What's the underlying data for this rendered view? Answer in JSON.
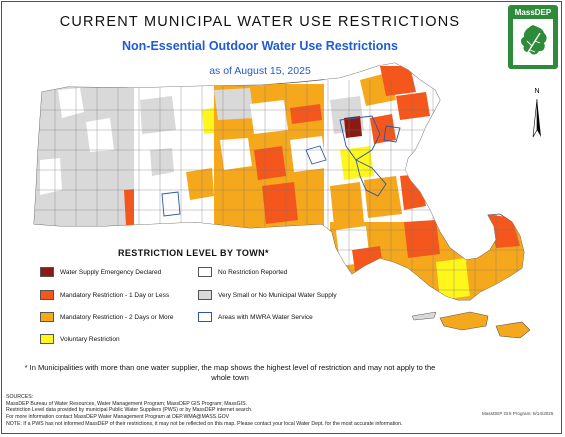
{
  "header": {
    "title": "CURRENT MUNICIPAL WATER USE RESTRICTIONS",
    "subtitle": "Non-Essential Outdoor Water Use Restrictions",
    "date": "as of August 15, 2025"
  },
  "logo": {
    "text": "MassDEP",
    "icon": "oak-leaf-icon",
    "color": "#2e8b3a"
  },
  "north_arrow": {
    "label": "N"
  },
  "legend": {
    "title": "RESTRICTION LEVEL BY TOWN*",
    "items": [
      {
        "label": "Water Supply Emergency Declared",
        "color": "#8b1a10"
      },
      {
        "label": "Mandatory Restriction - 1 Day or Less",
        "color": "#f4561c"
      },
      {
        "label": "Mandatory Restriction - 2 Days or More",
        "color": "#f6a81d"
      },
      {
        "label": "Voluntary Restriction",
        "color": "#fff71c"
      },
      {
        "label": "No Restriction Reported",
        "color": "#ffffff"
      },
      {
        "label": "Very Small or No Municipal Water Supply",
        "color": "#d9d9d9"
      },
      {
        "label": "Areas with MWRA Water Service",
        "color": "#2a55a8"
      }
    ]
  },
  "note": "* In Municipalities with more than one water supplier, the map shows the highest level of restriction and may not apply to the whole town",
  "sources": [
    "SOURCES:",
    "MassDEP Bureau of Water Resources, Water Management Program; MassDEP GIS Program; MassGIS.",
    "Restriction Level data provided by municipal Public Water Suppliers (PWS) or by MassDEP internet search.",
    "For more information contact MassDEP Water Management Program at DEP.WMA@MASS.GOV",
    "NOTE: If a PWS has not informed MassDEP of their restrictions, it may not be reflected on this map. Please contact your local Water Dept. for the most accurate information."
  ],
  "credit": "MassDEP GIS Program: 8/14/2025"
}
